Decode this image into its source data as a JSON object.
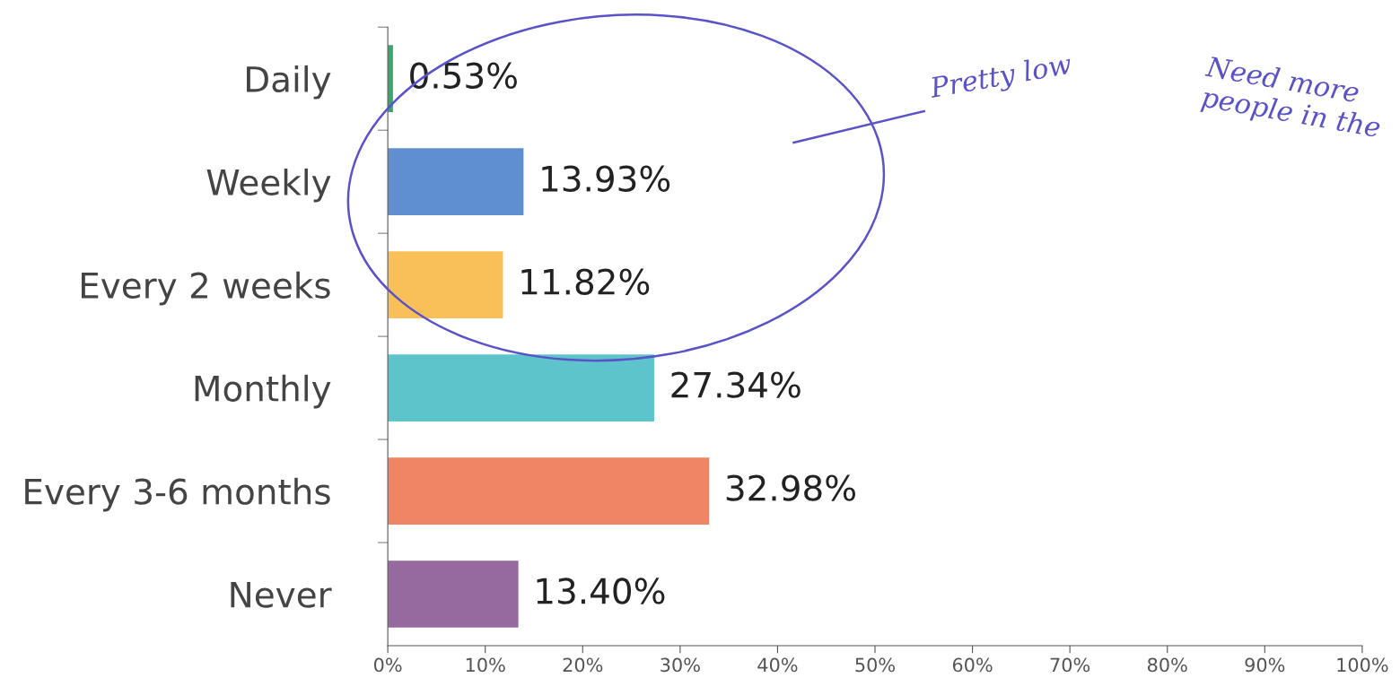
{
  "chart_data": {
    "type": "bar",
    "orientation": "horizontal",
    "categories": [
      "Daily",
      "Weekly",
      "Every 2 weeks",
      "Monthly",
      "Every 3-6 months",
      "Never"
    ],
    "values": [
      0.53,
      13.93,
      11.82,
      27.34,
      32.98,
      13.4
    ],
    "colors": [
      "#3aa66b",
      "#5f8fcf",
      "#f9c05a",
      "#5ec4cb",
      "#ef8565",
      "#96699f"
    ],
    "value_labels": [
      "0.53%",
      "13.93%",
      "11.82%",
      "27.34%",
      "32.98%",
      "13.40%"
    ],
    "xlim": [
      0,
      100
    ],
    "xticks": [
      {
        "value": 0,
        "label": "0%"
      },
      {
        "value": 10,
        "label": "10%"
      },
      {
        "value": 20,
        "label": "20%"
      },
      {
        "value": 30,
        "label": "30%"
      },
      {
        "value": 40,
        "label": "40%"
      },
      {
        "value": 50,
        "label": "50%"
      },
      {
        "value": 60,
        "label": "60%"
      },
      {
        "value": 70,
        "label": "70%"
      },
      {
        "value": 80,
        "label": "80%"
      },
      {
        "value": 90,
        "label": "90%"
      },
      {
        "value": 100,
        "label": "100%"
      }
    ],
    "grid": false,
    "legend": false,
    "annotations": [
      "Pretty low",
      "Need more people in the"
    ]
  }
}
